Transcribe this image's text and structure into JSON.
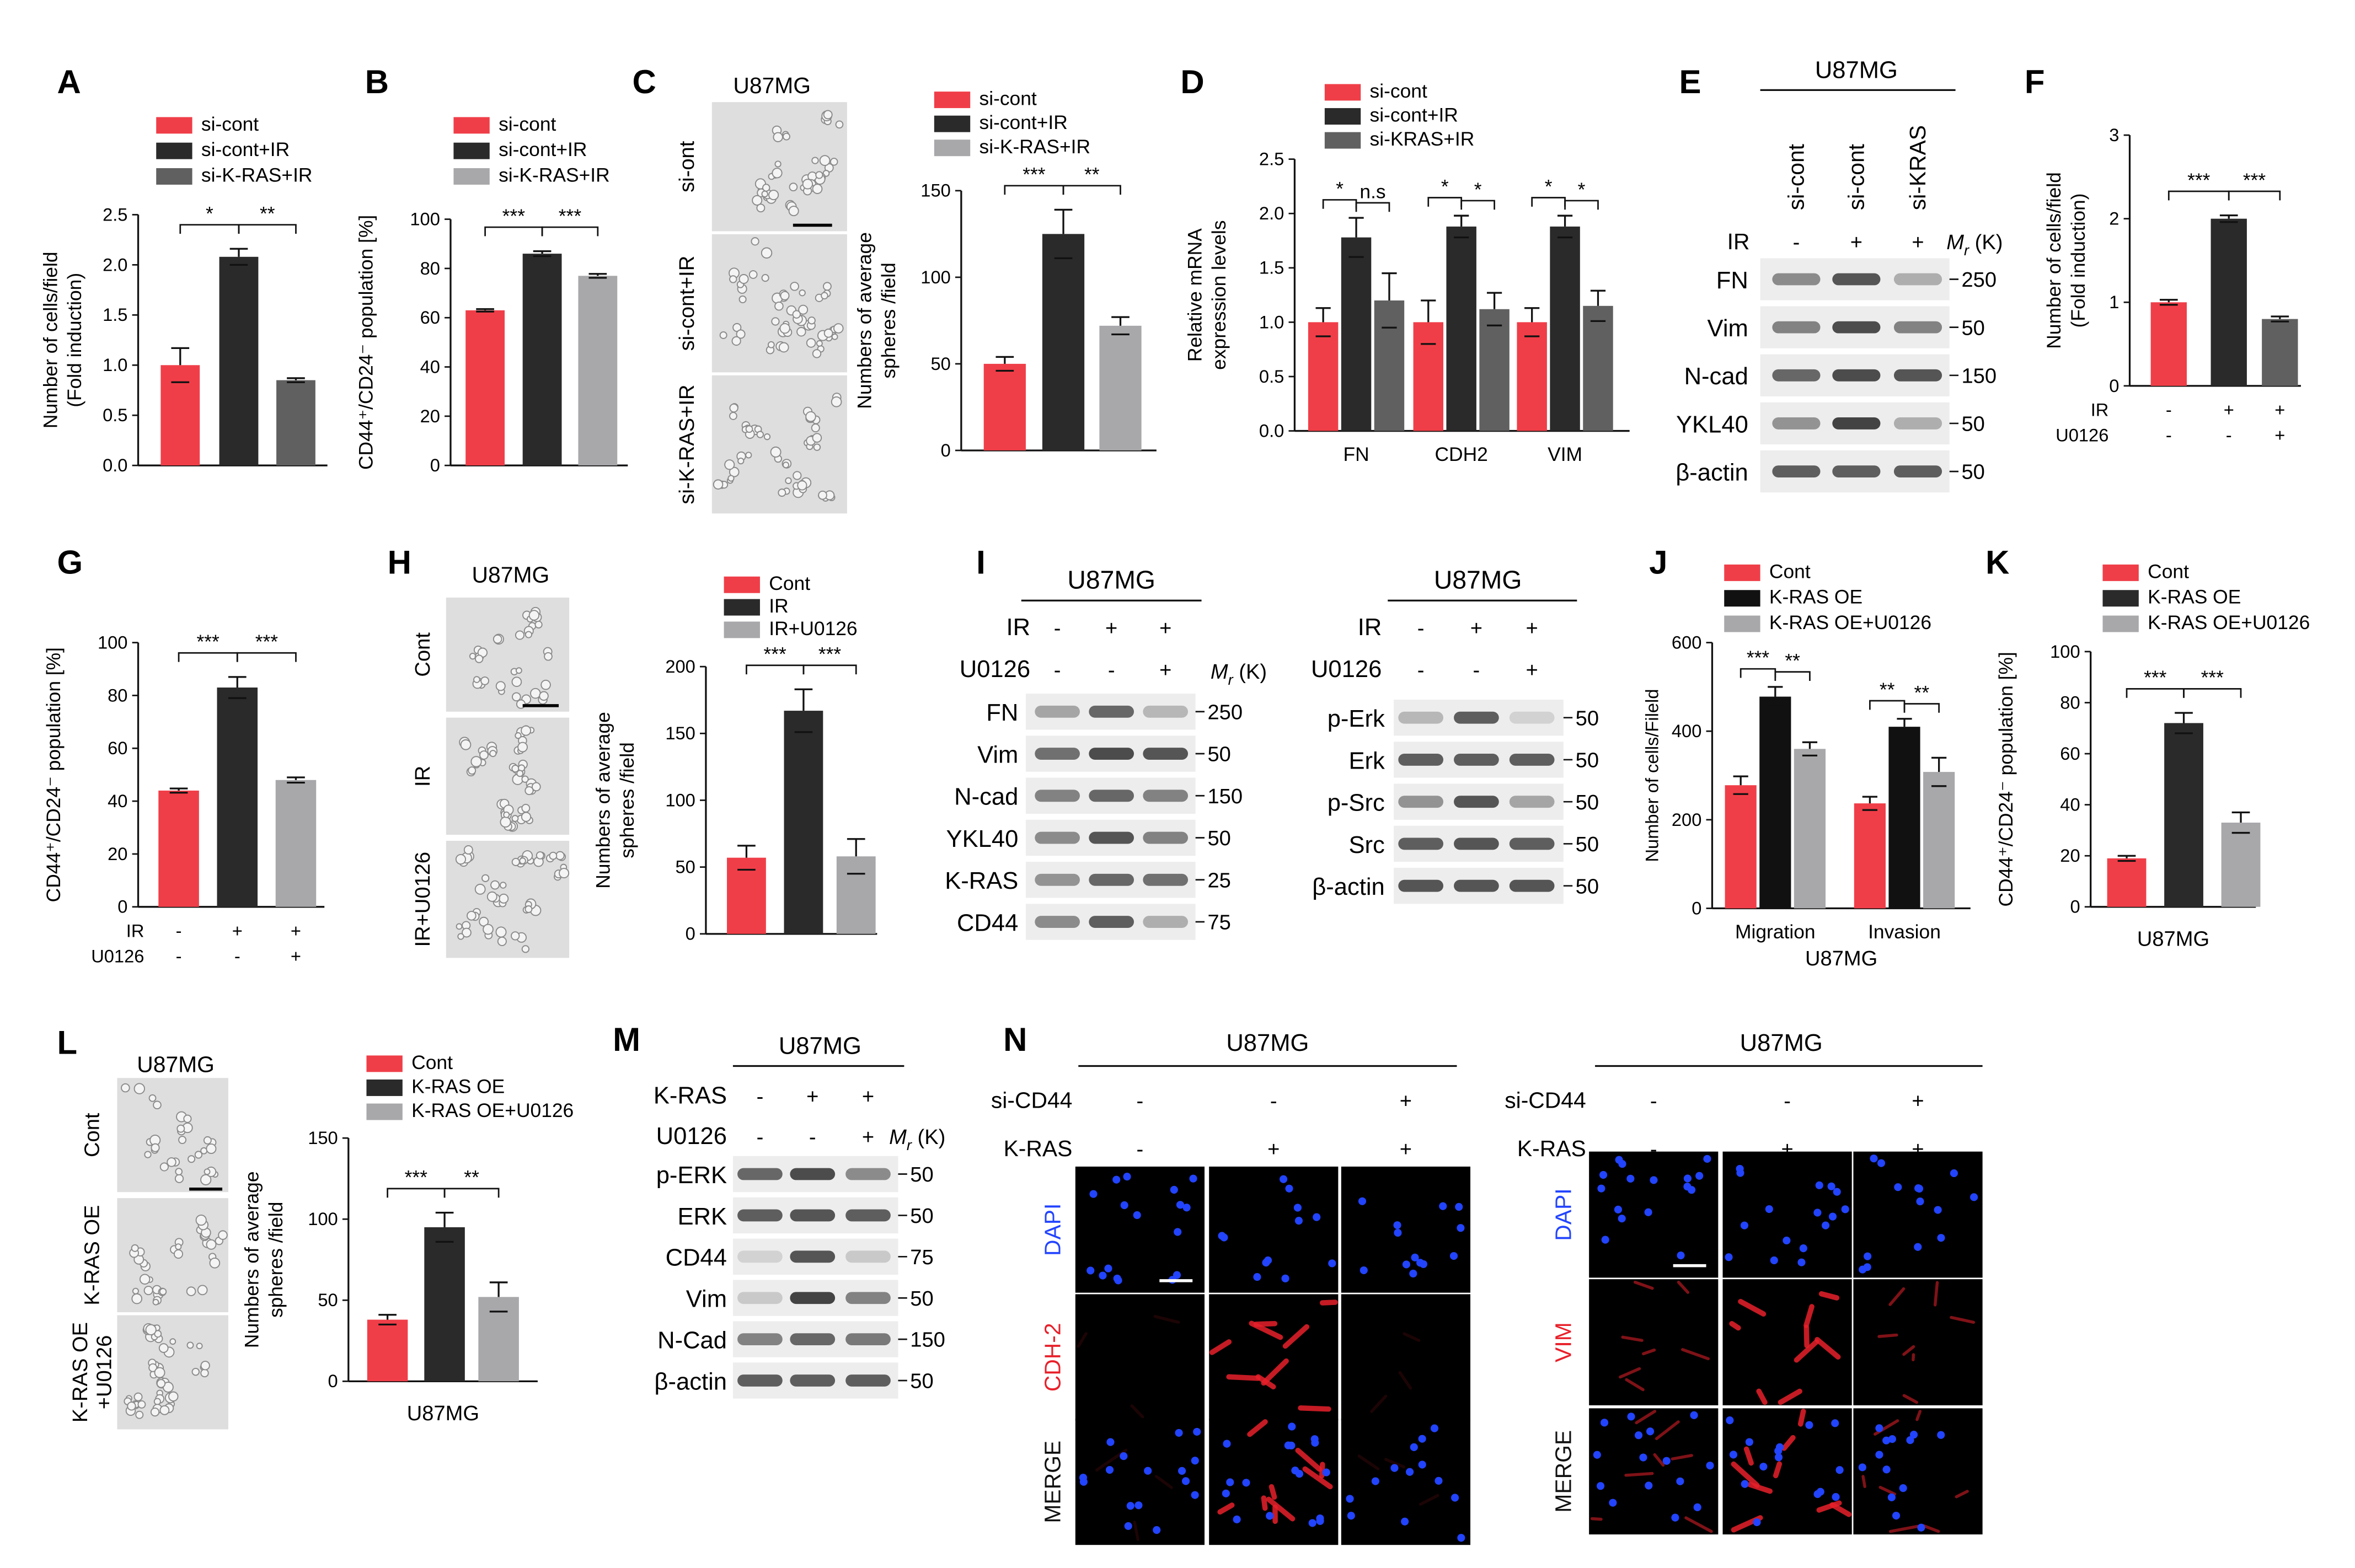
{
  "colors": {
    "red": "#f03e48",
    "black": "#2a2a2a",
    "darkgray": "#606060",
    "gray": "#a8a8ab",
    "blot_bg": "#ededed",
    "band": "#3a3a3a",
    "dapi": "#2244ff",
    "red_stain": "#e8202a",
    "microscope": "#dedede"
  },
  "panels": {
    "A": {
      "letter": "A",
      "legend": [
        "si-cont",
        "si-cont+IR",
        "si-K-RAS+IR"
      ],
      "ylabel": [
        "Number of cells/field",
        "(Fold induction)"
      ],
      "sig": [
        "*",
        "**"
      ],
      "chart_data": {
        "type": "bar",
        "categories": [
          "si-cont",
          "si-cont+IR",
          "si-K-RAS+IR"
        ],
        "values": [
          1.0,
          2.08,
          0.85
        ],
        "errors": [
          0.17,
          0.08,
          0.02
        ],
        "ylim": [
          0,
          2.5
        ],
        "yticks": [
          "0.0",
          "0.5",
          "1.0",
          "1.5",
          "2.0",
          "2.5"
        ]
      }
    },
    "B": {
      "letter": "B",
      "legend": [
        "si-cont",
        "si-cont+IR",
        "si-K-RAS+IR"
      ],
      "ylabel": "CD44⁺/CD24⁻ population [%]",
      "sig": [
        "***",
        "***"
      ],
      "chart_data": {
        "type": "bar",
        "categories": [
          "si-cont",
          "si-cont+IR",
          "si-K-RAS+IR"
        ],
        "values": [
          63,
          86,
          77
        ],
        "errors": [
          0.5,
          1.0,
          0.8
        ],
        "ylim": [
          0,
          100
        ],
        "yticks": [
          "0",
          "20",
          "40",
          "60",
          "80",
          "100"
        ]
      }
    },
    "C": {
      "letter": "C",
      "cell_line": "U87MG",
      "image_labels": [
        "si-ont",
        "si-cont+IR",
        "si-K-RAS+IR"
      ],
      "legend": [
        "si-cont",
        "si-cont+IR",
        "si-K-RAS+IR"
      ],
      "ylabel": [
        "Numbers of average",
        "spheres /field"
      ],
      "sig": [
        "***",
        "**"
      ],
      "chart_data": {
        "type": "bar",
        "categories": [
          "si-cont",
          "si-cont+IR",
          "si-K-RAS+IR"
        ],
        "values": [
          50,
          125,
          72
        ],
        "errors": [
          4,
          14,
          5
        ],
        "ylim": [
          0,
          150
        ],
        "yticks": [
          "0",
          "50",
          "100",
          "150"
        ]
      }
    },
    "D": {
      "letter": "D",
      "legend": [
        "si-cont",
        "si-cont+IR",
        "si-KRAS+IR"
      ],
      "ylabel": [
        "Relative mRNA",
        "expression levels"
      ],
      "groups": [
        "FN",
        "CDH2",
        "VIM"
      ],
      "sig": [
        [
          "*",
          "n.s"
        ],
        [
          "*",
          "*"
        ],
        [
          "*",
          "*"
        ]
      ],
      "chart_data": {
        "type": "bar",
        "categories": [
          "FN",
          "CDH2",
          "VIM"
        ],
        "series": [
          {
            "name": "si-cont",
            "values": [
              1.0,
              1.0,
              1.0
            ],
            "errors": [
              0.13,
              0.2,
              0.13
            ]
          },
          {
            "name": "si-cont+IR",
            "values": [
              1.78,
              1.88,
              1.88
            ],
            "errors": [
              0.18,
              0.1,
              0.1
            ]
          },
          {
            "name": "si-KRAS+IR",
            "values": [
              1.2,
              1.12,
              1.15
            ],
            "errors": [
              0.25,
              0.15,
              0.14
            ]
          }
        ],
        "ylim": [
          0,
          2.5
        ],
        "yticks": [
          "0.0",
          "0.5",
          "1.0",
          "1.5",
          "2.0",
          "2.5"
        ]
      }
    },
    "E": {
      "letter": "E",
      "cell_line": "U87MG",
      "lanes": [
        "si-cont",
        "si-cont",
        "si-KRAS"
      ],
      "ir_label": "IR",
      "ir": [
        "-",
        "+",
        "+"
      ],
      "mr_label": "M",
      "mr_sub": "r",
      "mr_unit": " (K)",
      "rows": [
        {
          "name": "FN",
          "marker": "250",
          "bands": [
            0.55,
            0.85,
            0.35
          ]
        },
        {
          "name": "Vim",
          "marker": "50",
          "bands": [
            0.6,
            0.9,
            0.6
          ]
        },
        {
          "name": "N-cad",
          "marker": "150",
          "bands": [
            0.75,
            0.9,
            0.85
          ]
        },
        {
          "name": "YKL40",
          "marker": "50",
          "bands": [
            0.5,
            0.95,
            0.35
          ]
        },
        {
          "name": "β-actin",
          "marker": "50",
          "bands": [
            0.8,
            0.8,
            0.8
          ]
        }
      ]
    },
    "F": {
      "letter": "F",
      "ylabel": [
        "Number of cells/field",
        "(Fold induction)"
      ],
      "conditions": [
        {
          "label": "IR",
          "values": [
            "-",
            "+",
            "+"
          ]
        },
        {
          "label": "U0126",
          "values": [
            "-",
            "-",
            "+"
          ]
        }
      ],
      "sig": [
        "***",
        "***"
      ],
      "chart_data": {
        "type": "bar",
        "categories": [
          "1",
          "2",
          "3"
        ],
        "values": [
          1.0,
          2.0,
          0.8
        ],
        "errors": [
          0.03,
          0.04,
          0.03
        ],
        "ylim": [
          0,
          3
        ],
        "yticks": [
          "0",
          "1",
          "2",
          "3"
        ]
      }
    },
    "G": {
      "letter": "G",
      "ylabel": "CD44⁺/CD24⁻ population [%]",
      "conditions": [
        {
          "label": "IR",
          "values": [
            "-",
            "+",
            "+"
          ]
        },
        {
          "label": "U0126",
          "values": [
            "-",
            "-",
            "+"
          ]
        }
      ],
      "sig": [
        "***",
        "***"
      ],
      "chart_data": {
        "type": "bar",
        "categories": [
          "1",
          "2",
          "3"
        ],
        "values": [
          44,
          83,
          48
        ],
        "errors": [
          0.8,
          4,
          1
        ],
        "ylim": [
          0,
          100
        ],
        "yticks": [
          "0",
          "20",
          "40",
          "60",
          "80",
          "100"
        ]
      }
    },
    "H": {
      "letter": "H",
      "cell_line": "U87MG",
      "image_labels": [
        "Cont",
        "IR",
        "IR+U0126"
      ],
      "legend": [
        "Cont",
        "IR",
        "IR+U0126"
      ],
      "ylabel": [
        "Numbers of average",
        "spheres /field"
      ],
      "sig": [
        "***",
        "***"
      ],
      "chart_data": {
        "type": "bar",
        "categories": [
          "Cont",
          "IR",
          "IR+U0126"
        ],
        "values": [
          57,
          167,
          58
        ],
        "errors": [
          9,
          16,
          13
        ],
        "ylim": [
          0,
          200
        ],
        "yticks": [
          "0",
          "50",
          "100",
          "150",
          "200"
        ]
      }
    },
    "I": {
      "letter": "I",
      "left": {
        "cell_line": "U87MG",
        "conditions": [
          {
            "label": "IR",
            "values": [
              "-",
              "+",
              "+"
            ]
          },
          {
            "label": "U0126",
            "values": [
              "-",
              "-",
              "+"
            ]
          }
        ],
        "rows": [
          {
            "name": "FN",
            "marker": "250",
            "bands": [
              0.4,
              0.75,
              0.3
            ]
          },
          {
            "name": "Vim",
            "marker": "50",
            "bands": [
              0.7,
              0.9,
              0.85
            ]
          },
          {
            "name": "N-cad",
            "marker": "150",
            "bands": [
              0.6,
              0.75,
              0.6
            ]
          },
          {
            "name": "YKL40",
            "marker": "50",
            "bands": [
              0.55,
              0.85,
              0.6
            ]
          },
          {
            "name": "K-RAS",
            "marker": "25",
            "bands": [
              0.5,
              0.75,
              0.7
            ]
          },
          {
            "name": "CD44",
            "marker": "75",
            "bands": [
              0.55,
              0.8,
              0.35
            ]
          }
        ]
      },
      "right": {
        "cell_line": "U87MG",
        "conditions": [
          {
            "label": "IR",
            "values": [
              "-",
              "+",
              "+"
            ]
          },
          {
            "label": "U0126",
            "values": [
              "-",
              "-",
              "+"
            ]
          }
        ],
        "rows": [
          {
            "name": "p-Erk",
            "marker": "50",
            "bands": [
              0.3,
              0.8,
              0.15
            ]
          },
          {
            "name": "Erk",
            "marker": "50",
            "bands": [
              0.8,
              0.8,
              0.8
            ]
          },
          {
            "name": "p-Src",
            "marker": "50",
            "bands": [
              0.5,
              0.85,
              0.4
            ]
          },
          {
            "name": "Src",
            "marker": "50",
            "bands": [
              0.8,
              0.85,
              0.8
            ]
          },
          {
            "name": "β-actin",
            "marker": "50",
            "bands": [
              0.85,
              0.85,
              0.85
            ]
          }
        ]
      }
    },
    "J": {
      "letter": "J",
      "legend": [
        "Cont",
        "K-RAS OE",
        "K-RAS OE+U0126"
      ],
      "ylabel": "Number of cells/Fileld",
      "groups": [
        "Migration",
        "Invasion"
      ],
      "xlabel": "U87MG",
      "sig": [
        [
          "***",
          "**"
        ],
        [
          "**",
          "**"
        ]
      ],
      "chart_data": {
        "type": "bar",
        "categories": [
          "Migration",
          "Invasion"
        ],
        "series": [
          {
            "name": "Cont",
            "values": [
              278,
              237
            ],
            "errors": [
              20,
              15
            ]
          },
          {
            "name": "K-RAS OE",
            "values": [
              478,
              410
            ],
            "errors": [
              22,
              18
            ]
          },
          {
            "name": "K-RAS OE+U0126",
            "values": [
              360,
              308
            ],
            "errors": [
              15,
              32
            ]
          }
        ],
        "ylim": [
          0,
          600
        ],
        "yticks": [
          "0",
          "200",
          "400",
          "600"
        ]
      }
    },
    "K": {
      "letter": "K",
      "legend": [
        "Cont",
        "K-RAS OE",
        "K-RAS OE+U0126"
      ],
      "ylabel": "CD44⁺/CD24⁻ population [%]",
      "xlabel": "U87MG",
      "sig": [
        "***",
        "***"
      ],
      "chart_data": {
        "type": "bar",
        "categories": [
          "Cont",
          "K-RAS OE",
          "K-RAS OE+U0126"
        ],
        "values": [
          19,
          72,
          33
        ],
        "errors": [
          1,
          4,
          4
        ],
        "ylim": [
          0,
          100
        ],
        "yticks": [
          "0",
          "20",
          "40",
          "60",
          "80",
          "100"
        ]
      }
    },
    "L": {
      "letter": "L",
      "cell_line": "U87MG",
      "image_labels": [
        [
          "Cont"
        ],
        [
          "K-RAS OE"
        ],
        [
          "K-RAS OE",
          "+U0126"
        ]
      ],
      "legend": [
        "Cont",
        "K-RAS OE",
        "K-RAS OE+U0126"
      ],
      "ylabel": [
        "Numbers of average",
        "spheres /field"
      ],
      "xlabel": "U87MG",
      "sig": [
        "***",
        "**"
      ],
      "chart_data": {
        "type": "bar",
        "categories": [
          "Cont",
          "K-RAS OE",
          "K-RAS OE+U0126"
        ],
        "values": [
          38,
          95,
          52
        ],
        "errors": [
          3,
          9,
          9
        ],
        "ylim": [
          0,
          150
        ],
        "yticks": [
          "0",
          "50",
          "100",
          "150"
        ]
      }
    },
    "M": {
      "letter": "M",
      "cell_line": "U87MG",
      "conditions": [
        {
          "label": "K-RAS",
          "values": [
            "-",
            "+",
            "+"
          ]
        },
        {
          "label": "U0126",
          "values": [
            "-",
            "-",
            "+"
          ]
        }
      ],
      "rows": [
        {
          "name": "p-ERK",
          "marker": "50",
          "bands": [
            0.75,
            0.9,
            0.55
          ]
        },
        {
          "name": "ERK",
          "marker": "50",
          "bands": [
            0.8,
            0.85,
            0.8
          ]
        },
        {
          "name": "CD44",
          "marker": "75",
          "bands": [
            0.15,
            0.85,
            0.2
          ]
        },
        {
          "name": "Vim",
          "marker": "50",
          "bands": [
            0.2,
            0.95,
            0.6
          ]
        },
        {
          "name": "N-Cad",
          "marker": "150",
          "bands": [
            0.6,
            0.75,
            0.65
          ]
        },
        {
          "name": "β-actin",
          "marker": "50",
          "bands": [
            0.8,
            0.8,
            0.8
          ]
        }
      ]
    },
    "N": {
      "letter": "N",
      "left": {
        "cell_line": "U87MG",
        "conditions": [
          {
            "label": "si-CD44",
            "values": [
              "-",
              "-",
              "+"
            ]
          },
          {
            "label": "K-RAS",
            "values": [
              "-",
              "+",
              "+"
            ]
          }
        ],
        "row_labels": [
          "DAPI",
          "CDH-2",
          "MERGE"
        ]
      },
      "right": {
        "cell_line": "U87MG",
        "conditions": [
          {
            "label": "si-CD44",
            "values": [
              "-",
              "-",
              "+"
            ]
          },
          {
            "label": "K-RAS",
            "values": [
              "-",
              "+",
              "+"
            ]
          }
        ],
        "row_labels": [
          "DAPI",
          "VIM",
          "MERGE"
        ]
      }
    }
  }
}
